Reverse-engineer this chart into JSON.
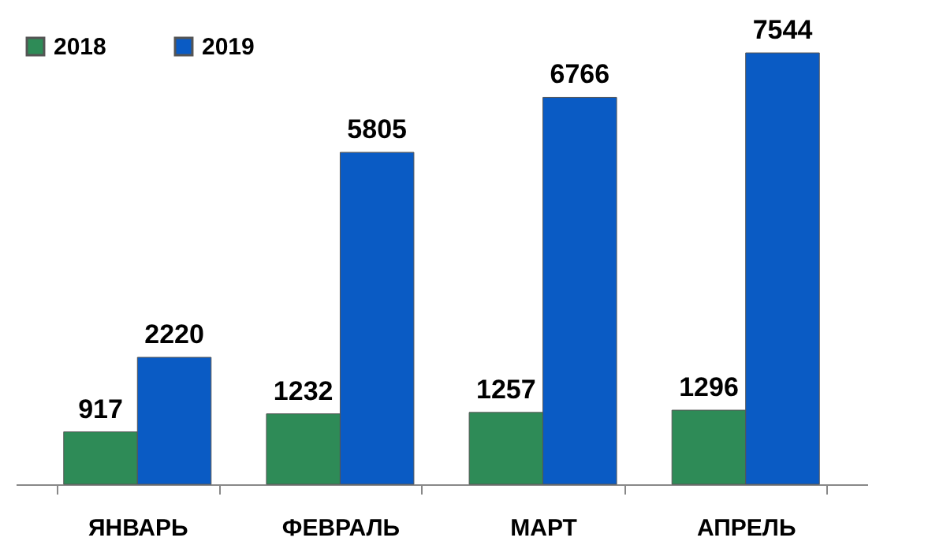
{
  "chart_data": {
    "type": "bar",
    "categories": [
      "ЯНВАРЬ",
      "ФЕВРАЛЬ",
      "МАРТ",
      "АПРЕЛЬ"
    ],
    "series": [
      {
        "name": "2018",
        "color": "#2e8b57",
        "values": [
          917,
          1232,
          1257,
          1296
        ]
      },
      {
        "name": "2019",
        "color": "#0a5bc4",
        "values": [
          2220,
          5805,
          6766,
          7544
        ]
      }
    ],
    "data_labels": true,
    "legend": "top left",
    "grid": false
  }
}
